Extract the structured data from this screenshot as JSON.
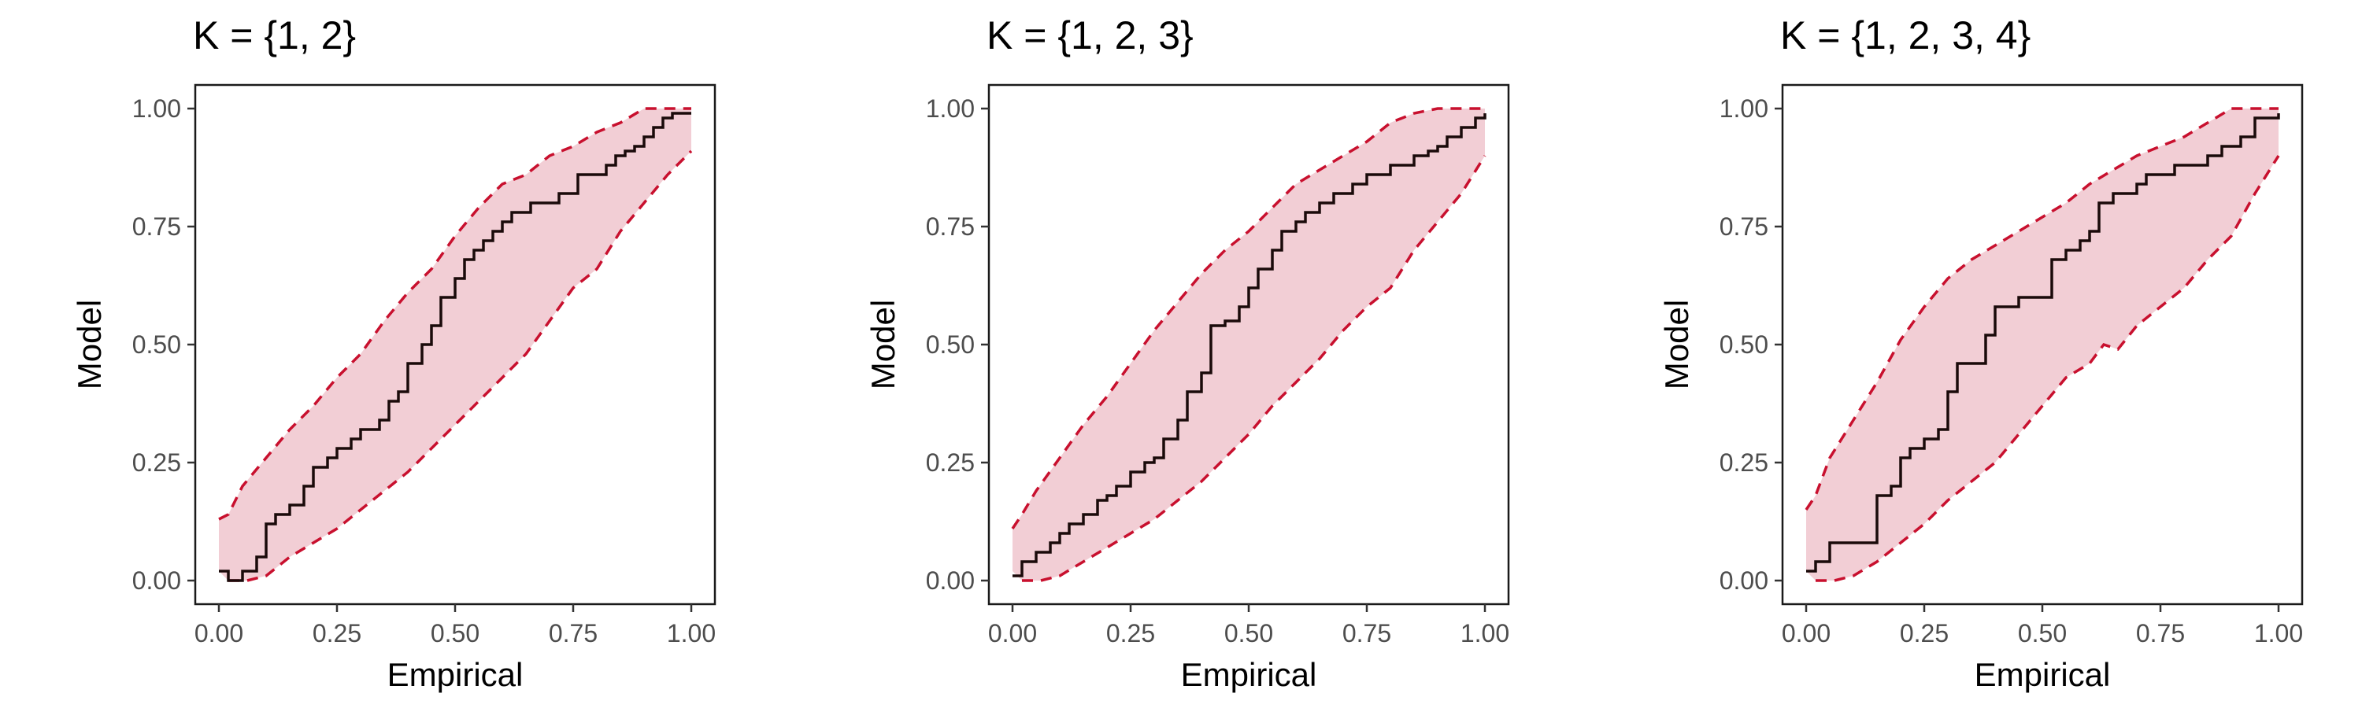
{
  "colors": {
    "band": "#f2ced5",
    "bound": "#c8102e",
    "line": "#1a0a0a",
    "text": "#000000",
    "tick_text": "#4d4d4d"
  },
  "chart_data": [
    {
      "type": "line",
      "title": "K = {1, 2}",
      "xlabel": "Empirical",
      "ylabel": "Model",
      "xlim": [
        0,
        1
      ],
      "ylim": [
        0,
        1
      ],
      "xticks": [
        "0.00",
        "0.25",
        "0.50",
        "0.75",
        "1.00"
      ],
      "yticks": [
        "0.00",
        "0.25",
        "0.50",
        "0.75",
        "1.00"
      ],
      "grid": false,
      "series": [
        {
          "role": "lower_bound",
          "x": [
            0.02,
            0.06,
            0.1,
            0.15,
            0.2,
            0.25,
            0.3,
            0.35,
            0.4,
            0.45,
            0.5,
            0.55,
            0.6,
            0.65,
            0.7,
            0.75,
            0.8,
            0.85,
            0.9,
            0.95,
            1.0
          ],
          "y": [
            0.0,
            0.0,
            0.01,
            0.05,
            0.08,
            0.11,
            0.15,
            0.19,
            0.23,
            0.28,
            0.33,
            0.38,
            0.43,
            0.48,
            0.55,
            0.62,
            0.66,
            0.74,
            0.8,
            0.86,
            0.91
          ]
        },
        {
          "role": "upper_bound",
          "x": [
            0.0,
            0.02,
            0.05,
            0.1,
            0.15,
            0.2,
            0.25,
            0.3,
            0.35,
            0.4,
            0.45,
            0.5,
            0.55,
            0.6,
            0.65,
            0.7,
            0.75,
            0.8,
            0.85,
            0.9,
            0.95,
            1.0
          ],
          "y": [
            0.13,
            0.14,
            0.2,
            0.26,
            0.32,
            0.37,
            0.43,
            0.48,
            0.55,
            0.61,
            0.66,
            0.73,
            0.79,
            0.84,
            0.86,
            0.9,
            0.92,
            0.95,
            0.97,
            1.0,
            1.0,
            1.0
          ]
        },
        {
          "role": "empirical_step",
          "x": [
            0.0,
            0.02,
            0.05,
            0.08,
            0.1,
            0.12,
            0.15,
            0.18,
            0.2,
            0.23,
            0.25,
            0.28,
            0.3,
            0.34,
            0.36,
            0.38,
            0.4,
            0.43,
            0.45,
            0.47,
            0.5,
            0.52,
            0.54,
            0.56,
            0.58,
            0.6,
            0.62,
            0.66,
            0.68,
            0.7,
            0.72,
            0.76,
            0.8,
            0.82,
            0.84,
            0.86,
            0.88,
            0.9,
            0.92,
            0.94,
            0.96,
            0.98,
            1.0
          ],
          "y": [
            0.02,
            0.0,
            0.02,
            0.05,
            0.12,
            0.14,
            0.16,
            0.2,
            0.24,
            0.26,
            0.28,
            0.3,
            0.32,
            0.34,
            0.38,
            0.4,
            0.46,
            0.5,
            0.54,
            0.6,
            0.64,
            0.68,
            0.7,
            0.72,
            0.74,
            0.76,
            0.78,
            0.8,
            0.8,
            0.8,
            0.82,
            0.86,
            0.86,
            0.88,
            0.9,
            0.91,
            0.92,
            0.94,
            0.96,
            0.98,
            0.99,
            0.99,
            0.99
          ]
        }
      ]
    },
    {
      "type": "line",
      "title": "K = {1, 2, 3}",
      "xlabel": "Empirical",
      "ylabel": "Model",
      "xlim": [
        0,
        1
      ],
      "ylim": [
        0,
        1
      ],
      "xticks": [
        "0.00",
        "0.25",
        "0.50",
        "0.75",
        "1.00"
      ],
      "yticks": [
        "0.00",
        "0.25",
        "0.50",
        "0.75",
        "1.00"
      ],
      "grid": false,
      "series": [
        {
          "role": "lower_bound",
          "x": [
            0.02,
            0.06,
            0.1,
            0.15,
            0.2,
            0.25,
            0.3,
            0.35,
            0.4,
            0.45,
            0.5,
            0.55,
            0.6,
            0.65,
            0.7,
            0.75,
            0.8,
            0.85,
            0.9,
            0.95,
            1.0
          ],
          "y": [
            0.0,
            0.0,
            0.01,
            0.04,
            0.07,
            0.1,
            0.13,
            0.17,
            0.21,
            0.26,
            0.31,
            0.37,
            0.42,
            0.47,
            0.53,
            0.58,
            0.62,
            0.7,
            0.76,
            0.82,
            0.9
          ]
        },
        {
          "role": "upper_bound",
          "x": [
            0.0,
            0.02,
            0.05,
            0.1,
            0.15,
            0.2,
            0.25,
            0.3,
            0.35,
            0.4,
            0.45,
            0.5,
            0.55,
            0.6,
            0.65,
            0.7,
            0.75,
            0.8,
            0.85,
            0.9,
            0.95,
            1.0
          ],
          "y": [
            0.11,
            0.14,
            0.19,
            0.26,
            0.33,
            0.39,
            0.46,
            0.53,
            0.59,
            0.65,
            0.7,
            0.74,
            0.79,
            0.84,
            0.87,
            0.9,
            0.93,
            0.97,
            0.99,
            1.0,
            1.0,
            1.0
          ]
        },
        {
          "role": "empirical_step",
          "x": [
            0.0,
            0.02,
            0.05,
            0.08,
            0.1,
            0.12,
            0.15,
            0.18,
            0.2,
            0.22,
            0.25,
            0.28,
            0.3,
            0.32,
            0.35,
            0.37,
            0.4,
            0.42,
            0.45,
            0.48,
            0.5,
            0.52,
            0.55,
            0.57,
            0.6,
            0.62,
            0.65,
            0.68,
            0.7,
            0.72,
            0.75,
            0.8,
            0.82,
            0.85,
            0.88,
            0.9,
            0.92,
            0.95,
            0.98,
            1.0
          ],
          "y": [
            0.01,
            0.04,
            0.06,
            0.08,
            0.1,
            0.12,
            0.14,
            0.17,
            0.18,
            0.2,
            0.23,
            0.25,
            0.26,
            0.3,
            0.34,
            0.4,
            0.44,
            0.54,
            0.55,
            0.58,
            0.62,
            0.66,
            0.7,
            0.74,
            0.76,
            0.78,
            0.8,
            0.82,
            0.82,
            0.84,
            0.86,
            0.88,
            0.88,
            0.9,
            0.91,
            0.92,
            0.94,
            0.96,
            0.98,
            0.99
          ]
        }
      ]
    },
    {
      "type": "line",
      "title": "K = {1, 2, 3, 4}",
      "xlabel": "Empirical",
      "ylabel": "Model",
      "xlim": [
        0,
        1
      ],
      "ylim": [
        0,
        1
      ],
      "xticks": [
        "0.00",
        "0.25",
        "0.50",
        "0.75",
        "1.00"
      ],
      "yticks": [
        "0.00",
        "0.25",
        "0.50",
        "0.75",
        "1.00"
      ],
      "grid": false,
      "series": [
        {
          "role": "lower_bound",
          "x": [
            0.02,
            0.06,
            0.1,
            0.15,
            0.2,
            0.25,
            0.3,
            0.35,
            0.4,
            0.45,
            0.5,
            0.55,
            0.6,
            0.63,
            0.66,
            0.7,
            0.75,
            0.8,
            0.85,
            0.9,
            0.95,
            1.0
          ],
          "y": [
            0.0,
            0.0,
            0.01,
            0.04,
            0.08,
            0.12,
            0.17,
            0.21,
            0.25,
            0.31,
            0.37,
            0.43,
            0.46,
            0.5,
            0.49,
            0.54,
            0.58,
            0.62,
            0.68,
            0.73,
            0.82,
            0.9
          ]
        },
        {
          "role": "upper_bound",
          "x": [
            0.0,
            0.02,
            0.05,
            0.1,
            0.15,
            0.2,
            0.25,
            0.3,
            0.35,
            0.4,
            0.45,
            0.5,
            0.55,
            0.6,
            0.65,
            0.7,
            0.75,
            0.8,
            0.85,
            0.9,
            0.95,
            1.0
          ],
          "y": [
            0.15,
            0.18,
            0.26,
            0.34,
            0.42,
            0.51,
            0.58,
            0.64,
            0.68,
            0.71,
            0.74,
            0.77,
            0.8,
            0.84,
            0.87,
            0.9,
            0.92,
            0.94,
            0.97,
            1.0,
            1.0,
            1.0
          ]
        },
        {
          "role": "empirical_step",
          "x": [
            0.0,
            0.02,
            0.05,
            0.08,
            0.1,
            0.12,
            0.15,
            0.18,
            0.2,
            0.22,
            0.25,
            0.28,
            0.3,
            0.32,
            0.35,
            0.38,
            0.4,
            0.42,
            0.45,
            0.5,
            0.52,
            0.55,
            0.58,
            0.6,
            0.62,
            0.65,
            0.7,
            0.72,
            0.75,
            0.78,
            0.8,
            0.85,
            0.88,
            0.9,
            0.92,
            0.95,
            0.98,
            1.0
          ],
          "y": [
            0.02,
            0.04,
            0.08,
            0.08,
            0.08,
            0.08,
            0.18,
            0.2,
            0.26,
            0.28,
            0.3,
            0.32,
            0.4,
            0.46,
            0.46,
            0.52,
            0.58,
            0.58,
            0.6,
            0.6,
            0.68,
            0.7,
            0.72,
            0.74,
            0.8,
            0.82,
            0.84,
            0.86,
            0.86,
            0.88,
            0.88,
            0.9,
            0.92,
            0.92,
            0.94,
            0.98,
            0.98,
            0.99
          ]
        }
      ]
    }
  ]
}
